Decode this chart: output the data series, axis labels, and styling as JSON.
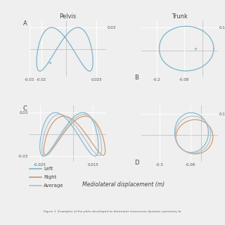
{
  "title_A": "Pelvis",
  "title_B": "Trunk",
  "xlabel": "Mediolateral displacement (m)",
  "caption": "Figure 1  Examples of the plots developed to determine transverse dynamic symmetry fo",
  "legend_labels": [
    "Left",
    "Right",
    "Average"
  ],
  "colors": {
    "left": "#7ab3cc",
    "right": "#c8956b",
    "average": "#b0bec5"
  },
  "bg_color": "#efefef",
  "grid_color": "#ffffff",
  "spine_color": "#cccccc"
}
